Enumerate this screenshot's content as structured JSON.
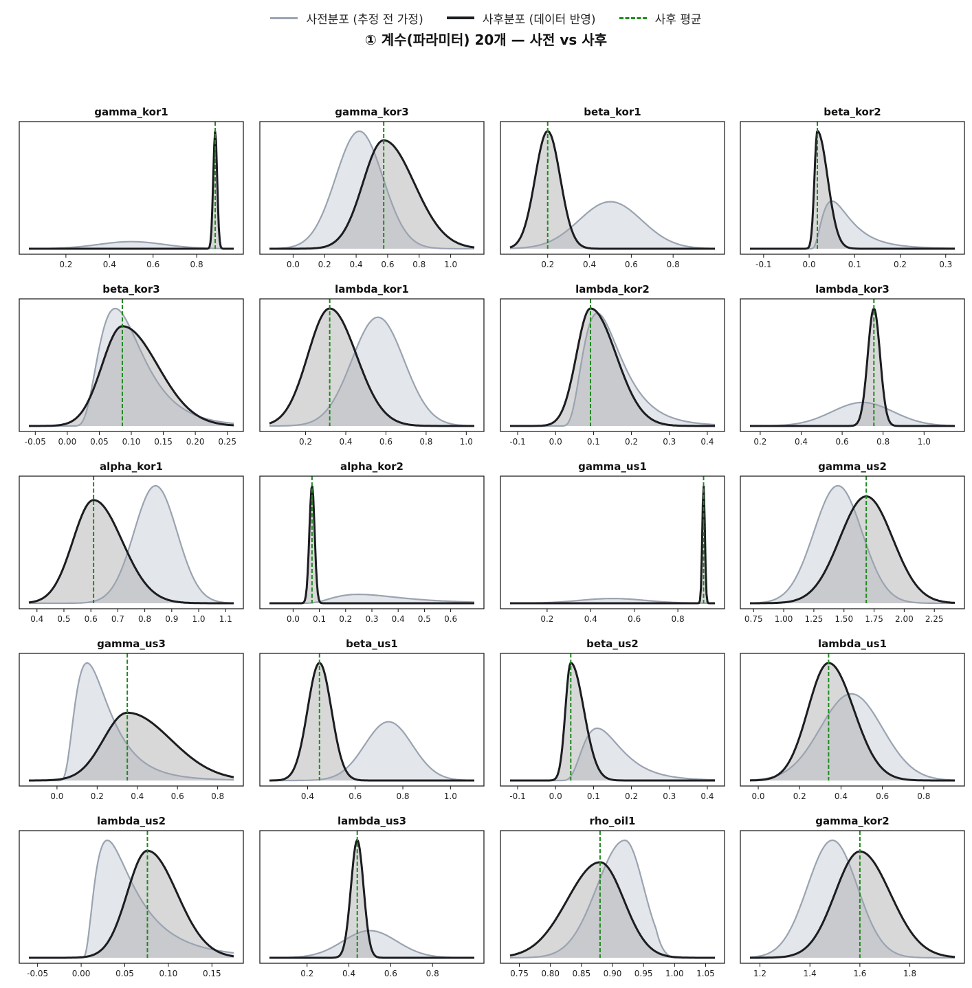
{
  "legend": {
    "prior_label": "사전분포 (추정 전 가정)",
    "posterior_label": "사후분포 (데이터 반영)",
    "mean_label": "사후 평균"
  },
  "title": "① 계수(파라미터) 20개 — 사전 vs 사후",
  "colors": {
    "prior_line": "#9aa3b1",
    "prior_fill": "#e1e5ea",
    "posterior_line": "#1c1d21",
    "posterior_fill": "#a8a8a8",
    "mean_line": "#1f8a1f"
  },
  "chart_data": [
    {
      "name": "gamma_kor1",
      "type": "area",
      "xlim": [
        0.03,
        0.97
      ],
      "ticks": [
        0.2,
        0.4,
        0.6,
        0.8
      ],
      "tick_labels": [
        "0.2",
        "0.4",
        "0.6",
        "0.8"
      ],
      "prior": {
        "dist": "normal",
        "mu": 0.5,
        "sd": 0.15
      },
      "posterior": {
        "mean": 0.885,
        "sd": 0.009,
        "skew": 0
      },
      "posterior_mean": 0.885
    },
    {
      "name": "gamma_kor3",
      "type": "area",
      "xlim": [
        -0.15,
        1.15
      ],
      "ticks": [
        0.0,
        0.2,
        0.4,
        0.6,
        0.8,
        1.0
      ],
      "tick_labels": [
        "0.0",
        "0.2",
        "0.4",
        "0.6",
        "0.8",
        "1.0"
      ],
      "prior": {
        "dist": "normal",
        "mu": 0.42,
        "sd": 0.15
      },
      "posterior": {
        "mean": 0.575,
        "sd": 0.16,
        "skew": 0.6
      },
      "posterior_mean": 0.575
    },
    {
      "name": "beta_kor1",
      "type": "area",
      "xlim": [
        0.02,
        1.0
      ],
      "ticks": [
        0.2,
        0.4,
        0.6,
        0.8
      ],
      "tick_labels": [
        "0.2",
        "0.4",
        "0.6",
        "0.8"
      ],
      "prior": {
        "dist": "normal",
        "mu": 0.5,
        "sd": 0.15
      },
      "posterior": {
        "mean": 0.2,
        "sd": 0.06,
        "skew": 0
      },
      "posterior_mean": 0.2
    },
    {
      "name": "beta_kor2",
      "type": "area",
      "xlim": [
        -0.13,
        0.32
      ],
      "ticks": [
        -0.1,
        0.0,
        0.1,
        0.2,
        0.3
      ],
      "tick_labels": [
        "-0.1",
        "0.0",
        "0.1",
        "0.2",
        "0.3"
      ],
      "prior": {
        "dist": "lognormal",
        "mode": 0.05,
        "spread": 0.6
      },
      "posterior": {
        "mean": 0.018,
        "sd": 0.012,
        "skew": 2.5
      },
      "posterior_mean": 0.018
    },
    {
      "name": "beta_kor3",
      "type": "area",
      "xlim": [
        -0.06,
        0.26
      ],
      "ticks": [
        -0.05,
        0.0,
        0.05,
        0.1,
        0.15,
        0.2,
        0.25
      ],
      "tick_labels": [
        "-0.05",
        "0.00",
        "0.05",
        "0.10",
        "0.15",
        "0.20",
        "0.25"
      ],
      "prior": {
        "dist": "lognormal",
        "mode": 0.075,
        "spread": 0.45
      },
      "posterior": {
        "mean": 0.086,
        "sd": 0.042,
        "skew": 0.9
      },
      "posterior_mean": 0.086
    },
    {
      "name": "lambda_kor1",
      "type": "area",
      "xlim": [
        0.02,
        1.04
      ],
      "ticks": [
        0.2,
        0.4,
        0.6,
        0.8,
        1.0
      ],
      "tick_labels": [
        "0.2",
        "0.4",
        "0.6",
        "0.8",
        "1.0"
      ],
      "prior": {
        "dist": "normal",
        "mu": 0.56,
        "sd": 0.13
      },
      "posterior": {
        "mean": 0.32,
        "sd": 0.12,
        "skew": 0.3
      },
      "posterior_mean": 0.32
    },
    {
      "name": "lambda_kor2",
      "type": "area",
      "xlim": [
        -0.12,
        0.42
      ],
      "ticks": [
        -0.1,
        0.0,
        0.1,
        0.2,
        0.3,
        0.4
      ],
      "tick_labels": [
        "-0.1",
        "0.0",
        "0.1",
        "0.2",
        "0.3",
        "0.4"
      ],
      "prior": {
        "dist": "lognormal",
        "mode": 0.11,
        "spread": 0.45
      },
      "posterior": {
        "mean": 0.092,
        "sd": 0.05,
        "skew": 1.0
      },
      "posterior_mean": 0.092
    },
    {
      "name": "lambda_kor3",
      "type": "area",
      "xlim": [
        0.15,
        1.15
      ],
      "ticks": [
        0.2,
        0.4,
        0.6,
        0.8,
        1.0
      ],
      "tick_labels": [
        "0.2",
        "0.4",
        "0.6",
        "0.8",
        "1.0"
      ],
      "prior": {
        "dist": "normal",
        "mu": 0.7,
        "sd": 0.15
      },
      "posterior": {
        "mean": 0.755,
        "sd": 0.03,
        "skew": 0
      },
      "posterior_mean": 0.755
    },
    {
      "name": "alpha_kor1",
      "type": "area",
      "xlim": [
        0.37,
        1.13
      ],
      "ticks": [
        0.4,
        0.5,
        0.6,
        0.7,
        0.8,
        0.9,
        1.0,
        1.1
      ],
      "tick_labels": [
        "0.4",
        "0.5",
        "0.6",
        "0.7",
        "0.8",
        "0.9",
        "1.0",
        "1.1"
      ],
      "prior": {
        "dist": "normal",
        "mu": 0.84,
        "sd": 0.08
      },
      "posterior": {
        "mean": 0.61,
        "sd": 0.09,
        "skew": 0.5
      },
      "posterior_mean": 0.61
    },
    {
      "name": "alpha_kor2",
      "type": "area",
      "xlim": [
        -0.09,
        0.69
      ],
      "ticks": [
        0.0,
        0.1,
        0.2,
        0.3,
        0.4,
        0.5,
        0.6
      ],
      "tick_labels": [
        "0.0",
        "0.1",
        "0.2",
        "0.3",
        "0.4",
        "0.5",
        "0.6"
      ],
      "prior": {
        "dist": "lognormal",
        "mode": 0.25,
        "spread": 0.5
      },
      "posterior": {
        "mean": 0.072,
        "sd": 0.01,
        "skew": 0
      },
      "posterior_mean": 0.072
    },
    {
      "name": "gamma_us1",
      "type": "area",
      "xlim": [
        0.03,
        0.97
      ],
      "ticks": [
        0.2,
        0.4,
        0.6,
        0.8
      ],
      "tick_labels": [
        "0.2",
        "0.4",
        "0.6",
        "0.8"
      ],
      "prior": {
        "dist": "normal",
        "mu": 0.5,
        "sd": 0.15
      },
      "posterior": {
        "mean": 0.918,
        "sd": 0.006,
        "skew": 0
      },
      "posterior_mean": 0.918
    },
    {
      "name": "gamma_us2",
      "type": "area",
      "xlim": [
        0.72,
        2.42
      ],
      "ticks": [
        0.75,
        1.0,
        1.25,
        1.5,
        1.75,
        2.0,
        2.25
      ],
      "tick_labels": [
        "0.75",
        "1.00",
        "1.25",
        "1.50",
        "1.75",
        "2.00",
        "2.25"
      ],
      "prior": {
        "dist": "normal",
        "mu": 1.45,
        "sd": 0.2
      },
      "posterior": {
        "mean": 1.685,
        "sd": 0.22,
        "skew": 0
      },
      "posterior_mean": 1.685
    },
    {
      "name": "gamma_us3",
      "type": "area",
      "xlim": [
        -0.14,
        0.88
      ],
      "ticks": [
        0.0,
        0.2,
        0.4,
        0.6,
        0.8
      ],
      "tick_labels": [
        "0.0",
        "0.2",
        "0.4",
        "0.6",
        "0.8"
      ],
      "prior": {
        "dist": "lognormal",
        "mode": 0.15,
        "spread": 0.55
      },
      "posterior": {
        "mean": 0.35,
        "sd": 0.16,
        "skew": 1.0
      },
      "posterior_mean": 0.35
    },
    {
      "name": "beta_us1",
      "type": "area",
      "xlim": [
        0.24,
        1.1
      ],
      "ticks": [
        0.4,
        0.6,
        0.8,
        1.0
      ],
      "tick_labels": [
        "0.4",
        "0.6",
        "0.8",
        "1.0"
      ],
      "prior": {
        "dist": "normal",
        "mu": 0.74,
        "sd": 0.1
      },
      "posterior": {
        "mean": 0.45,
        "sd": 0.05,
        "skew": 0
      },
      "posterior_mean": 0.45
    },
    {
      "name": "beta_us2",
      "type": "area",
      "xlim": [
        -0.12,
        0.42
      ],
      "ticks": [
        -0.1,
        0.0,
        0.1,
        0.2,
        0.3,
        0.4
      ],
      "tick_labels": [
        "-0.1",
        "0.0",
        "0.1",
        "0.2",
        "0.3",
        "0.4"
      ],
      "prior": {
        "dist": "lognormal",
        "mode": 0.11,
        "spread": 0.45
      },
      "posterior": {
        "mean": 0.04,
        "sd": 0.022,
        "skew": 1.6
      },
      "posterior_mean": 0.04
    },
    {
      "name": "lambda_us1",
      "type": "area",
      "xlim": [
        -0.04,
        0.95
      ],
      "ticks": [
        0.0,
        0.2,
        0.4,
        0.6,
        0.8
      ],
      "tick_labels": [
        "0.0",
        "0.2",
        "0.4",
        "0.6",
        "0.8"
      ],
      "prior": {
        "dist": "normal",
        "mu": 0.45,
        "sd": 0.15
      },
      "posterior": {
        "mean": 0.34,
        "sd": 0.11,
        "skew": 0.3
      },
      "posterior_mean": 0.34
    },
    {
      "name": "lambda_us2",
      "type": "area",
      "xlim": [
        -0.06,
        0.175
      ],
      "ticks": [
        -0.05,
        0.0,
        0.05,
        0.1,
        0.15
      ],
      "tick_labels": [
        "-0.05",
        "0.00",
        "0.05",
        "0.10",
        "0.15"
      ],
      "prior": {
        "dist": "lognormal",
        "mode": 0.03,
        "spread": 0.7
      },
      "posterior": {
        "mean": 0.076,
        "sd": 0.028,
        "skew": 0.6
      },
      "posterior_mean": 0.076
    },
    {
      "name": "lambda_us3",
      "type": "area",
      "xlim": [
        0.02,
        1.0
      ],
      "ticks": [
        0.2,
        0.4,
        0.6,
        0.8
      ],
      "tick_labels": [
        "0.2",
        "0.4",
        "0.6",
        "0.8"
      ],
      "prior": {
        "dist": "normal",
        "mu": 0.5,
        "sd": 0.13
      },
      "posterior": {
        "mean": 0.44,
        "sd": 0.03,
        "skew": 0
      },
      "posterior_mean": 0.44
    },
    {
      "name": "rho_oil1",
      "type": "area",
      "xlim": [
        0.735,
        1.065
      ],
      "ticks": [
        0.75,
        0.8,
        0.85,
        0.9,
        0.95,
        1.0,
        1.05
      ],
      "tick_labels": [
        "0.75",
        "0.80",
        "0.85",
        "0.90",
        "0.95",
        "1.00",
        "1.05"
      ],
      "prior": {
        "dist": "beta_like",
        "mode": 0.92,
        "left": 0.045,
        "right": 0.03
      },
      "posterior": {
        "mean": 0.88,
        "sd": 0.045,
        "skew": -0.5
      },
      "posterior_mean": 0.88
    },
    {
      "name": "gamma_kor2",
      "type": "area",
      "xlim": [
        1.16,
        1.98
      ],
      "ticks": [
        1.2,
        1.4,
        1.6,
        1.8
      ],
      "tick_labels": [
        "1.2",
        "1.4",
        "1.6",
        "1.8"
      ],
      "prior": {
        "dist": "normal",
        "mu": 1.49,
        "sd": 0.1
      },
      "posterior": {
        "mean": 1.6,
        "sd": 0.11,
        "skew": 0.3
      },
      "posterior_mean": 1.6
    }
  ]
}
